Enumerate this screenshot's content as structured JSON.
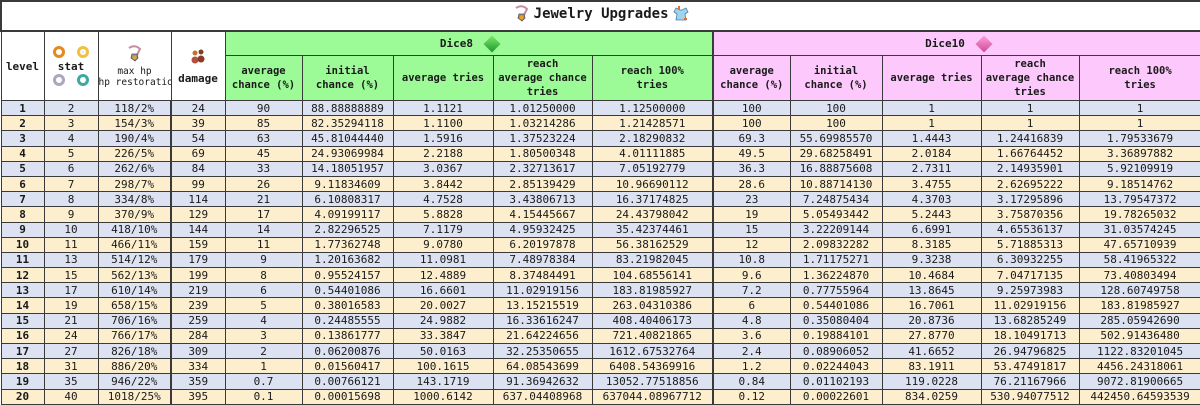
{
  "title": {
    "text": "Jewelry Upgrades",
    "left_icon": "necklace-icon",
    "right_icon": "armor-icon"
  },
  "groups": {
    "dice8": {
      "label": "Dice8",
      "icon": "green-dice-gem-icon",
      "color": "#9cfa97"
    },
    "dice10": {
      "label": "Dice10",
      "icon": "pink-dice-gem-icon",
      "color": "#fdc8fc"
    }
  },
  "headers": {
    "level": "level",
    "stat": "stat",
    "max_hp_line1": "max hp",
    "max_hp_line2": "hp restoration",
    "damage": "damage",
    "avg_chance_1": "average",
    "avg_chance_2": "chance (%)",
    "initial_chance_1": "initial",
    "initial_chance_2": "chance (%)",
    "avg_tries": "average tries",
    "reach_avg_1": "reach",
    "reach_avg_2": "average chance",
    "reach_avg_3": "tries",
    "reach_100_1": "reach 100%",
    "reach_100_2": "tries"
  },
  "colors": {
    "row_odd": "#dce2f2",
    "row_even": "#fdefcd",
    "dice8_header": "#9cfa97",
    "dice10_header": "#fdc8fc"
  },
  "rows": [
    {
      "level": "1",
      "stat": "2",
      "hp": "118/2%",
      "damage": "24",
      "d8_avg": "90",
      "d8_init": "88.88888889",
      "d8_tries": "1.1121",
      "d8_reach_avg": "1.01250000",
      "d8_reach_100": "1.12500000",
      "d10_avg": "100",
      "d10_init": "100",
      "d10_tries": "1",
      "d10_reach_avg": "1",
      "d10_reach_100": "1"
    },
    {
      "level": "2",
      "stat": "3",
      "hp": "154/3%",
      "damage": "39",
      "d8_avg": "85",
      "d8_init": "82.35294118",
      "d8_tries": "1.1100",
      "d8_reach_avg": "1.03214286",
      "d8_reach_100": "1.21428571",
      "d10_avg": "100",
      "d10_init": "100",
      "d10_tries": "1",
      "d10_reach_avg": "1",
      "d10_reach_100": "1"
    },
    {
      "level": "3",
      "stat": "4",
      "hp": "190/4%",
      "damage": "54",
      "d8_avg": "63",
      "d8_init": "45.81044440",
      "d8_tries": "1.5916",
      "d8_reach_avg": "1.37523224",
      "d8_reach_100": "2.18290832",
      "d10_avg": "69.3",
      "d10_init": "55.69985570",
      "d10_tries": "1.4443",
      "d10_reach_avg": "1.24416839",
      "d10_reach_100": "1.79533679"
    },
    {
      "level": "4",
      "stat": "5",
      "hp": "226/5%",
      "damage": "69",
      "d8_avg": "45",
      "d8_init": "24.93069984",
      "d8_tries": "2.2188",
      "d8_reach_avg": "1.80500348",
      "d8_reach_100": "4.01111885",
      "d10_avg": "49.5",
      "d10_init": "29.68258491",
      "d10_tries": "2.0184",
      "d10_reach_avg": "1.66764452",
      "d10_reach_100": "3.36897882"
    },
    {
      "level": "5",
      "stat": "6",
      "hp": "262/6%",
      "damage": "84",
      "d8_avg": "33",
      "d8_init": "14.18051957",
      "d8_tries": "3.0367",
      "d8_reach_avg": "2.32713617",
      "d8_reach_100": "7.05192779",
      "d10_avg": "36.3",
      "d10_init": "16.88875608",
      "d10_tries": "2.7311",
      "d10_reach_avg": "2.14935901",
      "d10_reach_100": "5.92109919"
    },
    {
      "level": "6",
      "stat": "7",
      "hp": "298/7%",
      "damage": "99",
      "d8_avg": "26",
      "d8_init": "9.11834609",
      "d8_tries": "3.8442",
      "d8_reach_avg": "2.85139429",
      "d8_reach_100": "10.96690112",
      "d10_avg": "28.6",
      "d10_init": "10.88714130",
      "d10_tries": "3.4755",
      "d10_reach_avg": "2.62695222",
      "d10_reach_100": "9.18514762"
    },
    {
      "level": "7",
      "stat": "8",
      "hp": "334/8%",
      "damage": "114",
      "d8_avg": "21",
      "d8_init": "6.10808317",
      "d8_tries": "4.7528",
      "d8_reach_avg": "3.43806713",
      "d8_reach_100": "16.37174825",
      "d10_avg": "23",
      "d10_init": "7.24875434",
      "d10_tries": "4.3703",
      "d10_reach_avg": "3.17295896",
      "d10_reach_100": "13.79547372"
    },
    {
      "level": "8",
      "stat": "9",
      "hp": "370/9%",
      "damage": "129",
      "d8_avg": "17",
      "d8_init": "4.09199117",
      "d8_tries": "5.8828",
      "d8_reach_avg": "4.15445667",
      "d8_reach_100": "24.43798042",
      "d10_avg": "19",
      "d10_init": "5.05493442",
      "d10_tries": "5.2443",
      "d10_reach_avg": "3.75870356",
      "d10_reach_100": "19.78265032"
    },
    {
      "level": "9",
      "stat": "10",
      "hp": "418/10%",
      "damage": "144",
      "d8_avg": "14",
      "d8_init": "2.82296525",
      "d8_tries": "7.1179",
      "d8_reach_avg": "4.95932425",
      "d8_reach_100": "35.42374461",
      "d10_avg": "15",
      "d10_init": "3.22209144",
      "d10_tries": "6.6991",
      "d10_reach_avg": "4.65536137",
      "d10_reach_100": "31.03574245"
    },
    {
      "level": "10",
      "stat": "11",
      "hp": "466/11%",
      "damage": "159",
      "d8_avg": "11",
      "d8_init": "1.77362748",
      "d8_tries": "9.0780",
      "d8_reach_avg": "6.20197878",
      "d8_reach_100": "56.38162529",
      "d10_avg": "12",
      "d10_init": "2.09832282",
      "d10_tries": "8.3185",
      "d10_reach_avg": "5.71885313",
      "d10_reach_100": "47.65710939"
    },
    {
      "level": "11",
      "stat": "13",
      "hp": "514/12%",
      "damage": "179",
      "d8_avg": "9",
      "d8_init": "1.20163682",
      "d8_tries": "11.0981",
      "d8_reach_avg": "7.48978384",
      "d8_reach_100": "83.21982045",
      "d10_avg": "10.8",
      "d10_init": "1.71175271",
      "d10_tries": "9.3238",
      "d10_reach_avg": "6.30932255",
      "d10_reach_100": "58.41965322"
    },
    {
      "level": "12",
      "stat": "15",
      "hp": "562/13%",
      "damage": "199",
      "d8_avg": "8",
      "d8_init": "0.95524157",
      "d8_tries": "12.4889",
      "d8_reach_avg": "8.37484491",
      "d8_reach_100": "104.68556141",
      "d10_avg": "9.6",
      "d10_init": "1.36224870",
      "d10_tries": "10.4684",
      "d10_reach_avg": "7.04717135",
      "d10_reach_100": "73.40803494"
    },
    {
      "level": "13",
      "stat": "17",
      "hp": "610/14%",
      "damage": "219",
      "d8_avg": "6",
      "d8_init": "0.54401086",
      "d8_tries": "16.6601",
      "d8_reach_avg": "11.02919156",
      "d8_reach_100": "183.81985927",
      "d10_avg": "7.2",
      "d10_init": "0.77755964",
      "d10_tries": "13.8645",
      "d10_reach_avg": "9.25973983",
      "d10_reach_100": "128.60749758"
    },
    {
      "level": "14",
      "stat": "19",
      "hp": "658/15%",
      "damage": "239",
      "d8_avg": "5",
      "d8_init": "0.38016583",
      "d8_tries": "20.0027",
      "d8_reach_avg": "13.15215519",
      "d8_reach_100": "263.04310386",
      "d10_avg": "6",
      "d10_init": "0.54401086",
      "d10_tries": "16.7061",
      "d10_reach_avg": "11.02919156",
      "d10_reach_100": "183.81985927"
    },
    {
      "level": "15",
      "stat": "21",
      "hp": "706/16%",
      "damage": "259",
      "d8_avg": "4",
      "d8_init": "0.24485555",
      "d8_tries": "24.9882",
      "d8_reach_avg": "16.33616247",
      "d8_reach_100": "408.40406173",
      "d10_avg": "4.8",
      "d10_init": "0.35080404",
      "d10_tries": "20.8736",
      "d10_reach_avg": "13.68285249",
      "d10_reach_100": "285.05942690"
    },
    {
      "level": "16",
      "stat": "24",
      "hp": "766/17%",
      "damage": "284",
      "d8_avg": "3",
      "d8_init": "0.13861777",
      "d8_tries": "33.3847",
      "d8_reach_avg": "21.64224656",
      "d8_reach_100": "721.40821865",
      "d10_avg": "3.6",
      "d10_init": "0.19884101",
      "d10_tries": "27.8770",
      "d10_reach_avg": "18.10491713",
      "d10_reach_100": "502.91436480"
    },
    {
      "level": "17",
      "stat": "27",
      "hp": "826/18%",
      "damage": "309",
      "d8_avg": "2",
      "d8_init": "0.06200876",
      "d8_tries": "50.0163",
      "d8_reach_avg": "32.25350655",
      "d8_reach_100": "1612.67532764",
      "d10_avg": "2.4",
      "d10_init": "0.08906052",
      "d10_tries": "41.6652",
      "d10_reach_avg": "26.94796825",
      "d10_reach_100": "1122.83201045"
    },
    {
      "level": "18",
      "stat": "31",
      "hp": "886/20%",
      "damage": "334",
      "d8_avg": "1",
      "d8_init": "0.01560417",
      "d8_tries": "100.1615",
      "d8_reach_avg": "64.08543699",
      "d8_reach_100": "6408.54369916",
      "d10_avg": "1.2",
      "d10_init": "0.02244043",
      "d10_tries": "83.1911",
      "d10_reach_avg": "53.47491817",
      "d10_reach_100": "4456.24318061"
    },
    {
      "level": "19",
      "stat": "35",
      "hp": "946/22%",
      "damage": "359",
      "d8_avg": "0.7",
      "d8_init": "0.00766121",
      "d8_tries": "143.1719",
      "d8_reach_avg": "91.36942632",
      "d8_reach_100": "13052.77518856",
      "d10_avg": "0.84",
      "d10_init": "0.01102193",
      "d10_tries": "119.0228",
      "d10_reach_avg": "76.21167966",
      "d10_reach_100": "9072.81900665"
    },
    {
      "level": "20",
      "stat": "40",
      "hp": "1018/25%",
      "damage": "395",
      "d8_avg": "0.1",
      "d8_init": "0.00015698",
      "d8_tries": "1000.6142",
      "d8_reach_avg": "637.04408968",
      "d8_reach_100": "637044.08967712",
      "d10_avg": "0.12",
      "d10_init": "0.00022601",
      "d10_tries": "834.0259",
      "d10_reach_avg": "530.94077512",
      "d10_reach_100": "442450.64593539"
    }
  ]
}
